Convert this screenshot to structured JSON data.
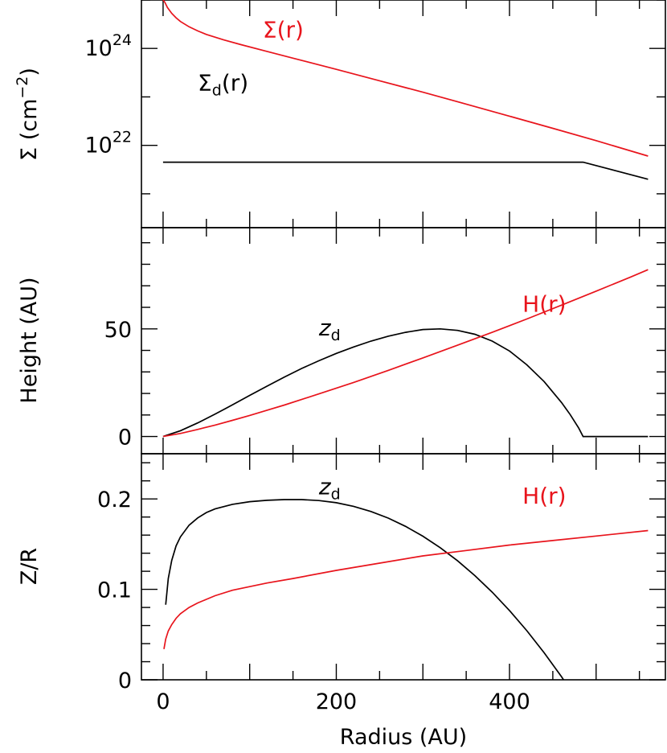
{
  "figure": {
    "xlabel": "Radius (AU)",
    "x_ticks": [
      0,
      200,
      400
    ]
  },
  "colors": {
    "red": "#e8141c",
    "black": "#000000"
  },
  "chart_data": [
    {
      "type": "line",
      "panel": "top",
      "ylabel_main": "Σ (cm",
      "ylabel_sup": "−2",
      "ylabel_close": ")",
      "xlim": [
        -25,
        580
      ],
      "ylim": [
        2e+20,
        1e+25
      ],
      "yscale": "log",
      "ytick_labels": [
        {
          "value": 1e+24,
          "base": "10",
          "exp": "24"
        },
        {
          "value": 1e+22,
          "base": "10",
          "exp": "22"
        }
      ],
      "series": [
        {
          "name": "Σ(r)",
          "color": "#e8141c",
          "x": [
            0,
            2,
            5,
            10,
            15,
            20,
            30,
            40,
            50,
            70,
            90,
            120,
            150,
            200,
            250,
            300,
            350,
            400,
            450,
            500,
            560
          ],
          "y": [
            1e+25,
            9e+24,
            7e+24,
            5.3e+24,
            4.3e+24,
            3.6e+24,
            2.8e+24,
            2.3e+24,
            1.95e+24,
            1.5e+24,
            1.2e+24,
            8.7e+23,
            6.3e+23,
            3.7e+23,
            2.15e+23,
            1.25e+23,
            7.1e+22,
            4e+22,
            2.25e+22,
            1.25e+22,
            6e+21
          ]
        },
        {
          "name": "Σ",
          "name_sub": "d",
          "name_suffix": "(r)",
          "color": "#000000",
          "x": [
            0,
            485,
            560
          ],
          "y": [
            4.5e+21,
            4.5e+21,
            2e+21
          ]
        }
      ],
      "annotations": [
        {
          "series": 0,
          "x": 115,
          "y": 1.7e+24
        },
        {
          "series": 1,
          "x": 40,
          "y": 1.35e+23
        }
      ]
    },
    {
      "type": "line",
      "panel": "middle",
      "ylabel": "Height (AU)",
      "xlim": [
        -25,
        580
      ],
      "ylim": [
        -8,
        97
      ],
      "yticks": [
        0,
        50
      ],
      "series": [
        {
          "name": "z",
          "name_sub": "d",
          "color": "#000000",
          "x": [
            0,
            20,
            40,
            60,
            80,
            100,
            120,
            140,
            160,
            180,
            200,
            220,
            240,
            260,
            280,
            300,
            320,
            340,
            360,
            380,
            400,
            420,
            440,
            460,
            470,
            480,
            485,
            560
          ],
          "y": [
            0,
            2.7,
            6.3,
            10.4,
            14.7,
            19.1,
            23.4,
            27.6,
            31.6,
            35.2,
            38.6,
            41.6,
            44.3,
            46.6,
            48.4,
            49.7,
            50.0,
            49.3,
            47.5,
            44.3,
            39.7,
            33.3,
            25.5,
            15.8,
            10.2,
            3.9,
            0,
            0
          ]
        },
        {
          "name": "H(r)",
          "color": "#e8141c",
          "x": [
            0,
            20,
            40,
            60,
            80,
            100,
            140,
            180,
            220,
            260,
            300,
            340,
            380,
            420,
            460,
            500,
            540,
            560
          ],
          "y": [
            0,
            1.4,
            3.3,
            5.3,
            7.5,
            9.8,
            14.6,
            19.8,
            25.1,
            30.7,
            36.5,
            42.4,
            48.4,
            54.6,
            61.0,
            67.5,
            74.1,
            77.5
          ]
        }
      ],
      "annotations": [
        {
          "series": 0,
          "x": 180,
          "y": 47
        },
        {
          "series": 1,
          "x": 415,
          "y": 58
        }
      ]
    },
    {
      "type": "line",
      "panel": "bottom",
      "ylabel": "Z/R",
      "xlim": [
        -25,
        580
      ],
      "ylim": [
        0,
        0.25
      ],
      "yticks": [
        0,
        0.1,
        0.2
      ],
      "ytick_labels": [
        "0",
        "0.1",
        "0.2"
      ],
      "series": [
        {
          "name": "z",
          "name_sub": "d",
          "color": "#000000",
          "x": [
            3,
            6,
            10,
            15,
            20,
            30,
            40,
            50,
            60,
            80,
            100,
            120,
            140,
            160,
            180,
            200,
            220,
            240,
            260,
            280,
            300,
            320,
            340,
            360,
            380,
            400,
            420,
            440,
            460,
            470,
            480,
            485
          ],
          "y": [
            0.083,
            0.112,
            0.132,
            0.148,
            0.158,
            0.171,
            0.179,
            0.185,
            0.189,
            0.194,
            0.197,
            0.1985,
            0.1993,
            0.1993,
            0.1982,
            0.1958,
            0.1918,
            0.1861,
            0.1788,
            0.1697,
            0.1588,
            0.1461,
            0.1316,
            0.1152,
            0.0969,
            0.0766,
            0.0543,
            0.0299,
            0.0035,
            -0.011,
            -0.025,
            -0.032
          ]
        },
        {
          "name": "H(r)",
          "color": "#e8141c",
          "x": [
            1,
            3,
            6,
            10,
            15,
            20,
            30,
            40,
            50,
            60,
            80,
            100,
            120,
            150,
            200,
            250,
            300,
            350,
            400,
            450,
            500,
            560
          ],
          "y": [
            0.034,
            0.045,
            0.054,
            0.061,
            0.068,
            0.073,
            0.08,
            0.085,
            0.089,
            0.093,
            0.099,
            0.103,
            0.107,
            0.112,
            0.121,
            0.129,
            0.137,
            0.143,
            0.149,
            0.154,
            0.159,
            0.165
          ]
        }
      ],
      "annotations": [
        {
          "series": 0,
          "x": 180,
          "y": 0.205
        },
        {
          "series": 1,
          "x": 415,
          "y": 0.195
        }
      ]
    }
  ]
}
